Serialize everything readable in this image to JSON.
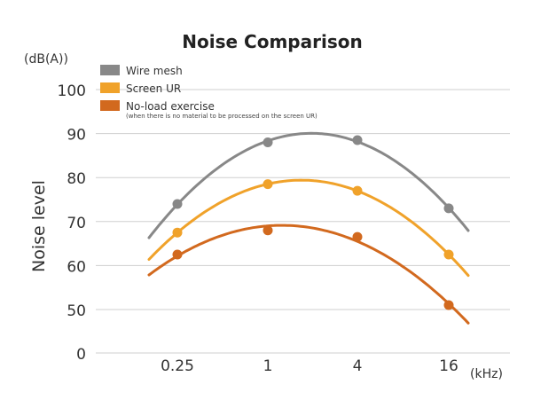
{
  "chart_data": {
    "type": "line",
    "title": "Noise Comparison",
    "ylabel": "Noise level",
    "y_unit": "(dB(A))",
    "x_unit": "(kHz)",
    "categories": [
      "0.25",
      "1",
      "4",
      "16"
    ],
    "ylim": [
      0,
      100
    ],
    "y_ticks": [
      0,
      50,
      60,
      70,
      80,
      90,
      100
    ],
    "grid": true,
    "legend_position": "top-left",
    "series": [
      {
        "name": "Wire mesh",
        "color": "#888888",
        "values": [
          74,
          88,
          88.5,
          73
        ]
      },
      {
        "name": "Screen UR",
        "color": "#f0a22a",
        "values": [
          67.5,
          78.5,
          77,
          62.5
        ]
      },
      {
        "name": "No-load exercise",
        "note": "(when there is no material to be processed on the screen UR)",
        "color": "#d2691e",
        "values": [
          62.5,
          68,
          66.5,
          51
        ]
      }
    ]
  }
}
